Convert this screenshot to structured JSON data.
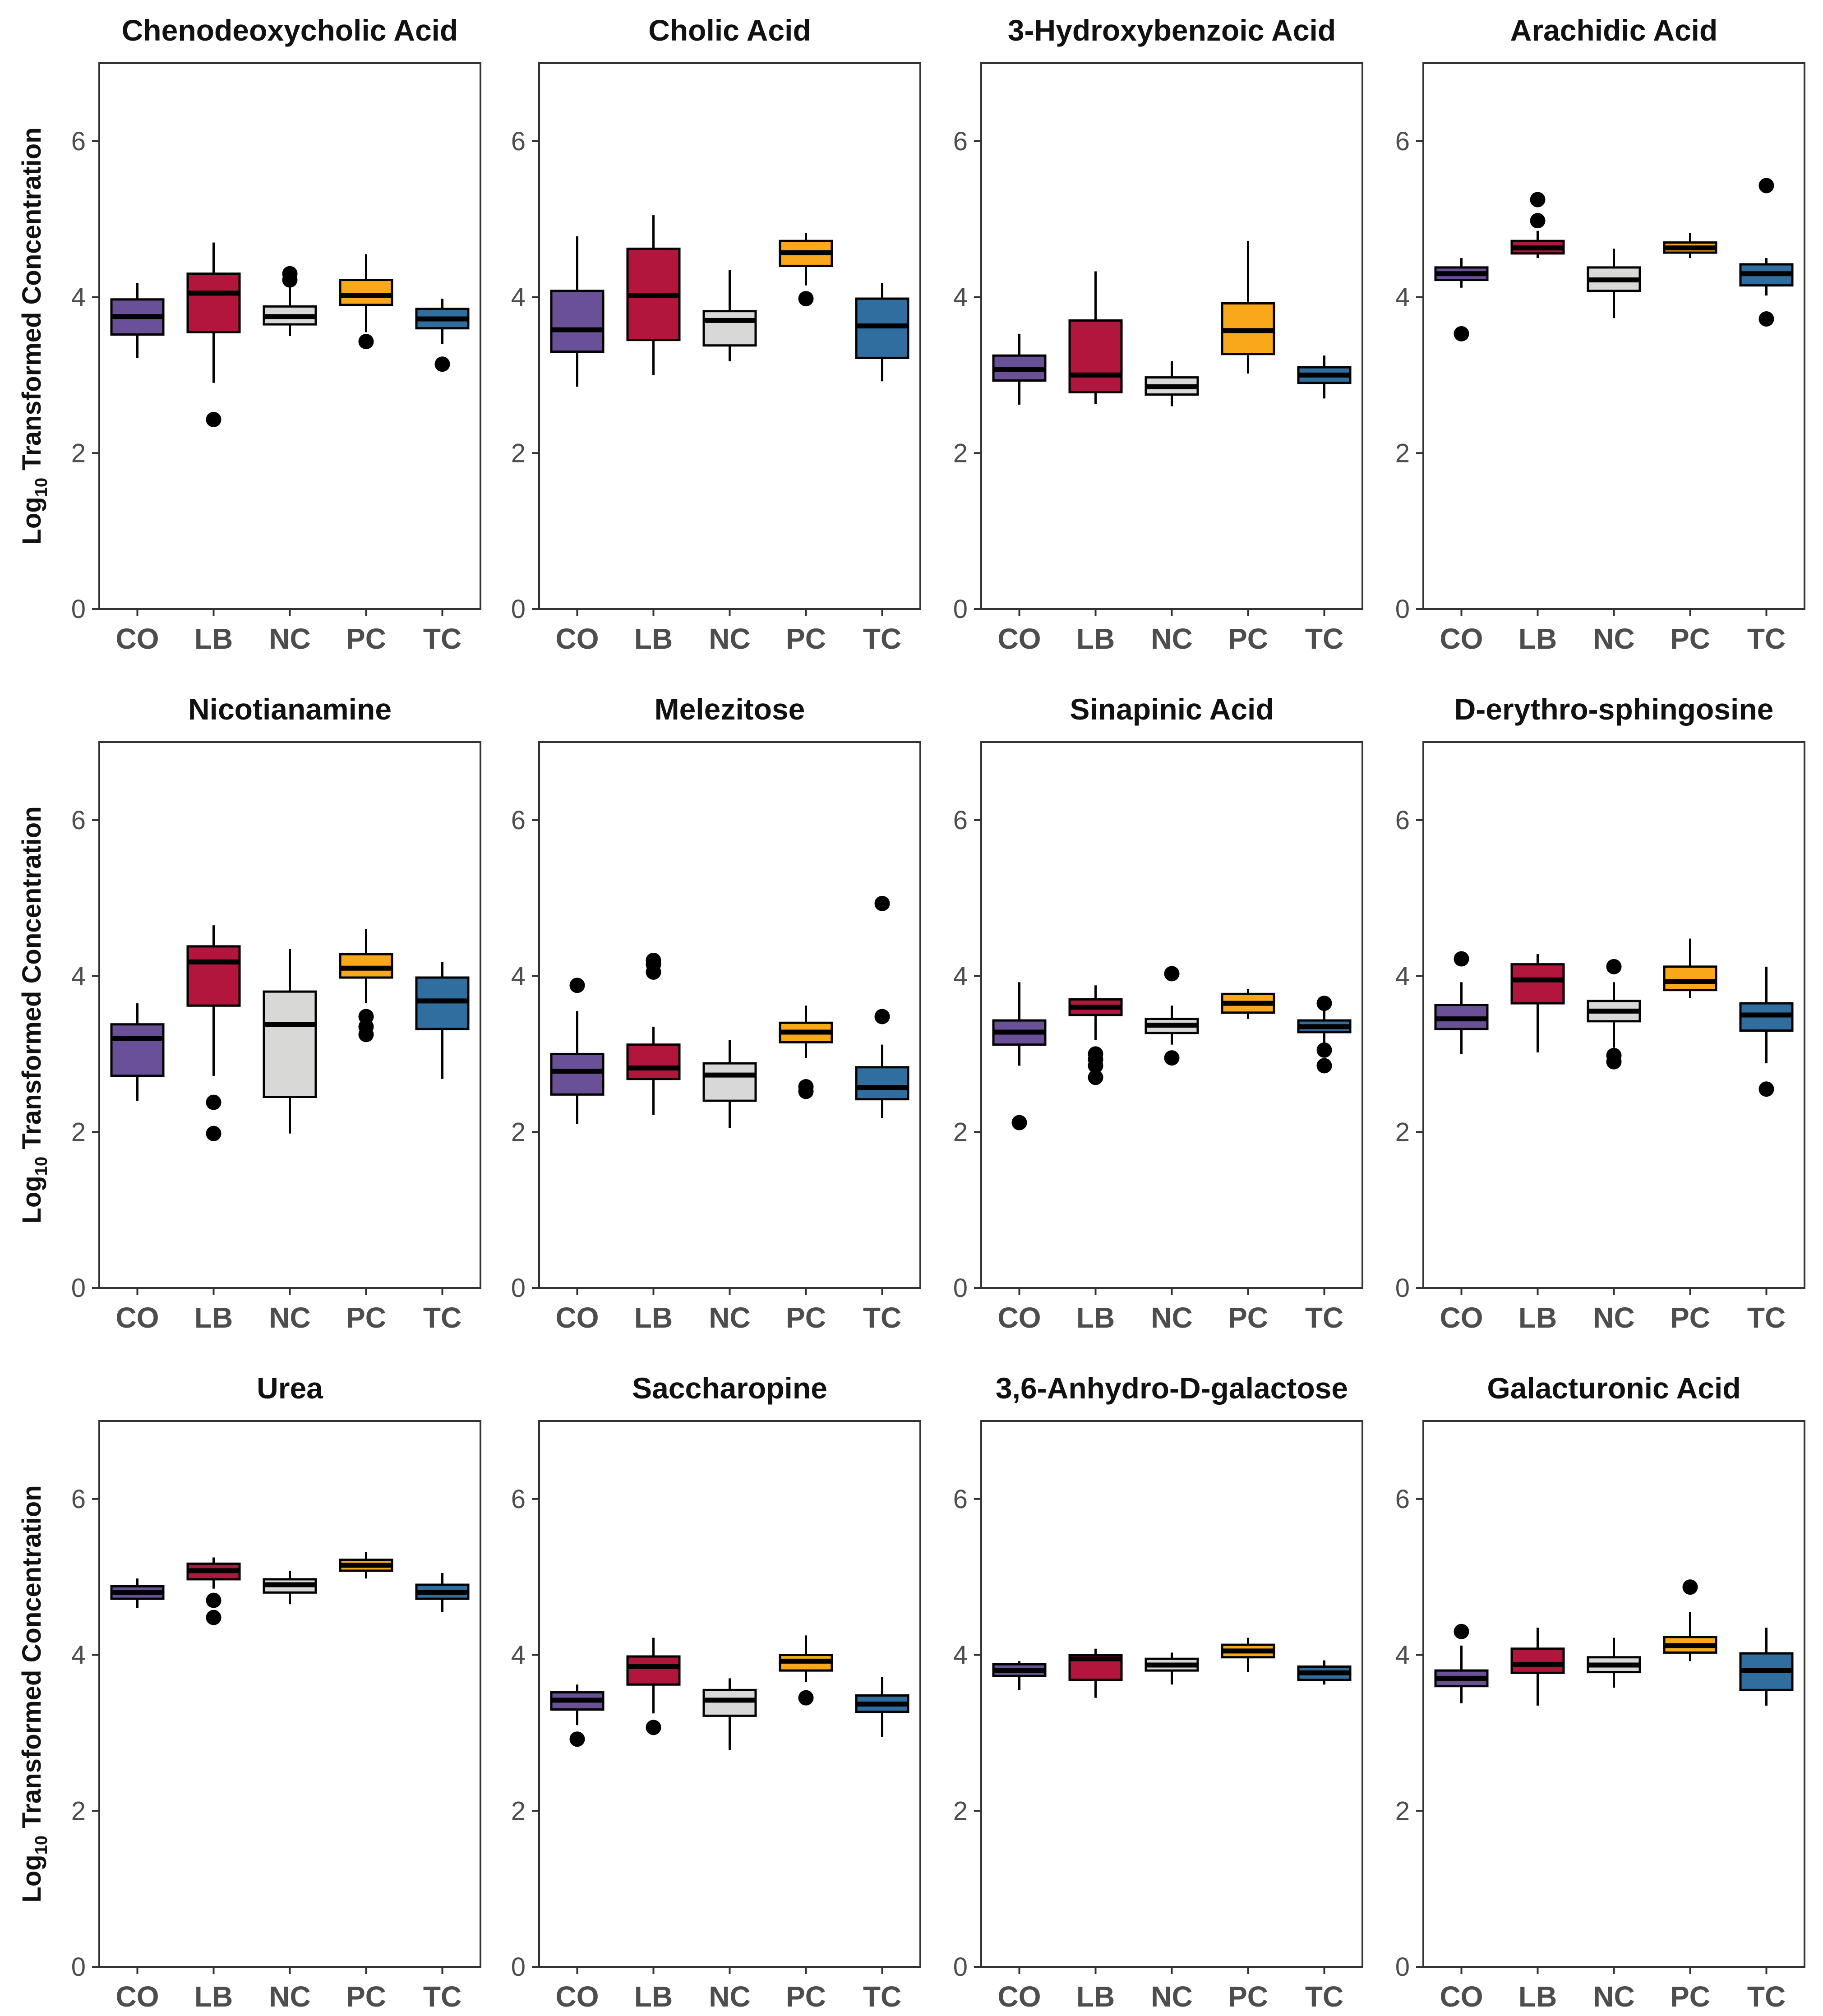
{
  "figure": {
    "y_axis_title_prefix": "Log",
    "y_axis_title_subscript": "10",
    "y_axis_title_suffix": " Transformed Concentration"
  },
  "group_colors": {
    "CO": "#6a5197",
    "LB": "#b3163d",
    "NC": "#d8d9d6",
    "PC": "#f8a81a",
    "TC": "#2f6e9e"
  },
  "chart_data": [
    {
      "type": "box",
      "title": "Chenodeoxycholic Acid",
      "categories": [
        "CO",
        "LB",
        "NC",
        "PC",
        "TC"
      ],
      "ylim": [
        0,
        7
      ],
      "yticks": [
        0,
        2,
        4,
        6
      ],
      "xlabel": "",
      "ylabel": "Log10 Transformed Concentration",
      "boxes": [
        {
          "group": "CO",
          "min": 3.22,
          "q1": 3.52,
          "median": 3.75,
          "q3": 3.97,
          "max": 4.18,
          "outliers": []
        },
        {
          "group": "LB",
          "min": 2.9,
          "q1": 3.55,
          "median": 4.05,
          "q3": 4.3,
          "max": 4.7,
          "outliers": [
            2.43
          ]
        },
        {
          "group": "NC",
          "min": 3.5,
          "q1": 3.65,
          "median": 3.75,
          "q3": 3.88,
          "max": 4.15,
          "outliers": [
            4.22,
            4.3
          ]
        },
        {
          "group": "PC",
          "min": 3.55,
          "q1": 3.9,
          "median": 4.02,
          "q3": 4.22,
          "max": 4.55,
          "outliers": [
            3.43
          ]
        },
        {
          "group": "TC",
          "min": 3.4,
          "q1": 3.6,
          "median": 3.72,
          "q3": 3.85,
          "max": 3.98,
          "outliers": [
            3.14
          ]
        }
      ]
    },
    {
      "type": "box",
      "title": "Cholic Acid",
      "categories": [
        "CO",
        "LB",
        "NC",
        "PC",
        "TC"
      ],
      "ylim": [
        0,
        7
      ],
      "yticks": [
        0,
        2,
        4,
        6
      ],
      "xlabel": "",
      "ylabel": "",
      "boxes": [
        {
          "group": "CO",
          "min": 2.85,
          "q1": 3.3,
          "median": 3.58,
          "q3": 4.08,
          "max": 4.78,
          "outliers": []
        },
        {
          "group": "LB",
          "min": 3.0,
          "q1": 3.45,
          "median": 4.02,
          "q3": 4.62,
          "max": 5.05,
          "outliers": []
        },
        {
          "group": "NC",
          "min": 3.18,
          "q1": 3.38,
          "median": 3.7,
          "q3": 3.82,
          "max": 4.35,
          "outliers": []
        },
        {
          "group": "PC",
          "min": 4.15,
          "q1": 4.4,
          "median": 4.57,
          "q3": 4.72,
          "max": 4.82,
          "outliers": [
            3.98
          ]
        },
        {
          "group": "TC",
          "min": 2.92,
          "q1": 3.22,
          "median": 3.63,
          "q3": 3.98,
          "max": 4.18,
          "outliers": []
        }
      ]
    },
    {
      "type": "box",
      "title": "3-Hydroxybenzoic Acid",
      "categories": [
        "CO",
        "LB",
        "NC",
        "PC",
        "TC"
      ],
      "ylim": [
        0,
        7
      ],
      "yticks": [
        0,
        2,
        4,
        6
      ],
      "xlabel": "",
      "ylabel": "",
      "boxes": [
        {
          "group": "CO",
          "min": 2.62,
          "q1": 2.93,
          "median": 3.07,
          "q3": 3.25,
          "max": 3.53,
          "outliers": []
        },
        {
          "group": "LB",
          "min": 2.63,
          "q1": 2.78,
          "median": 3.0,
          "q3": 3.7,
          "max": 4.33,
          "outliers": []
        },
        {
          "group": "NC",
          "min": 2.6,
          "q1": 2.75,
          "median": 2.85,
          "q3": 2.97,
          "max": 3.18,
          "outliers": []
        },
        {
          "group": "PC",
          "min": 3.02,
          "q1": 3.27,
          "median": 3.57,
          "q3": 3.92,
          "max": 4.72,
          "outliers": []
        },
        {
          "group": "TC",
          "min": 2.7,
          "q1": 2.9,
          "median": 3.0,
          "q3": 3.1,
          "max": 3.25,
          "outliers": []
        }
      ]
    },
    {
      "type": "box",
      "title": "Arachidic Acid",
      "categories": [
        "CO",
        "LB",
        "NC",
        "PC",
        "TC"
      ],
      "ylim": [
        0,
        7
      ],
      "yticks": [
        0,
        2,
        4,
        6
      ],
      "xlabel": "",
      "ylabel": "",
      "boxes": [
        {
          "group": "CO",
          "min": 4.12,
          "q1": 4.22,
          "median": 4.3,
          "q3": 4.38,
          "max": 4.5,
          "outliers": [
            3.53
          ]
        },
        {
          "group": "LB",
          "min": 4.5,
          "q1": 4.56,
          "median": 4.63,
          "q3": 4.72,
          "max": 4.85,
          "outliers": [
            4.98,
            5.25
          ]
        },
        {
          "group": "NC",
          "min": 3.73,
          "q1": 4.08,
          "median": 4.22,
          "q3": 4.38,
          "max": 4.62,
          "outliers": []
        },
        {
          "group": "PC",
          "min": 4.5,
          "q1": 4.57,
          "median": 4.63,
          "q3": 4.7,
          "max": 4.82,
          "outliers": []
        },
        {
          "group": "TC",
          "min": 4.02,
          "q1": 4.15,
          "median": 4.3,
          "q3": 4.42,
          "max": 4.5,
          "outliers": [
            3.72,
            5.43
          ]
        }
      ]
    },
    {
      "type": "box",
      "title": "Nicotianamine",
      "categories": [
        "CO",
        "LB",
        "NC",
        "PC",
        "TC"
      ],
      "ylim": [
        0,
        7
      ],
      "yticks": [
        0,
        2,
        4,
        6
      ],
      "xlabel": "",
      "ylabel": "Log10 Transformed Concentration",
      "boxes": [
        {
          "group": "CO",
          "min": 2.4,
          "q1": 2.72,
          "median": 3.2,
          "q3": 3.38,
          "max": 3.65,
          "outliers": []
        },
        {
          "group": "LB",
          "min": 2.72,
          "q1": 3.62,
          "median": 4.18,
          "q3": 4.38,
          "max": 4.65,
          "outliers": [
            2.38,
            1.98
          ]
        },
        {
          "group": "NC",
          "min": 1.98,
          "q1": 2.45,
          "median": 3.38,
          "q3": 3.8,
          "max": 4.35,
          "outliers": []
        },
        {
          "group": "PC",
          "min": 3.65,
          "q1": 3.98,
          "median": 4.1,
          "q3": 4.28,
          "max": 4.6,
          "outliers": [
            3.48,
            3.35,
            3.25
          ]
        },
        {
          "group": "TC",
          "min": 2.68,
          "q1": 3.32,
          "median": 3.68,
          "q3": 3.98,
          "max": 4.18,
          "outliers": []
        }
      ]
    },
    {
      "type": "box",
      "title": "Melezitose",
      "categories": [
        "CO",
        "LB",
        "NC",
        "PC",
        "TC"
      ],
      "ylim": [
        0,
        7
      ],
      "yticks": [
        0,
        2,
        4,
        6
      ],
      "xlabel": "",
      "ylabel": "",
      "boxes": [
        {
          "group": "CO",
          "min": 2.1,
          "q1": 2.48,
          "median": 2.78,
          "q3": 3.0,
          "max": 3.55,
          "outliers": [
            3.88
          ]
        },
        {
          "group": "LB",
          "min": 2.22,
          "q1": 2.68,
          "median": 2.82,
          "q3": 3.12,
          "max": 3.35,
          "outliers": [
            4.05,
            4.15,
            4.2
          ]
        },
        {
          "group": "NC",
          "min": 2.05,
          "q1": 2.4,
          "median": 2.73,
          "q3": 2.88,
          "max": 3.18,
          "outliers": []
        },
        {
          "group": "PC",
          "min": 2.95,
          "q1": 3.15,
          "median": 3.28,
          "q3": 3.4,
          "max": 3.62,
          "outliers": [
            2.58,
            2.52
          ]
        },
        {
          "group": "TC",
          "min": 2.18,
          "q1": 2.42,
          "median": 2.57,
          "q3": 2.83,
          "max": 3.12,
          "outliers": [
            3.48,
            4.93
          ]
        }
      ]
    },
    {
      "type": "box",
      "title": "Sinapinic Acid",
      "categories": [
        "CO",
        "LB",
        "NC",
        "PC",
        "TC"
      ],
      "ylim": [
        0,
        7
      ],
      "yticks": [
        0,
        2,
        4,
        6
      ],
      "xlabel": "",
      "ylabel": "",
      "boxes": [
        {
          "group": "CO",
          "min": 2.85,
          "q1": 3.12,
          "median": 3.28,
          "q3": 3.43,
          "max": 3.92,
          "outliers": [
            2.12
          ]
        },
        {
          "group": "LB",
          "min": 3.18,
          "q1": 3.5,
          "median": 3.6,
          "q3": 3.7,
          "max": 3.88,
          "outliers": [
            3.0,
            2.93,
            2.85,
            2.7
          ]
        },
        {
          "group": "NC",
          "min": 3.12,
          "q1": 3.27,
          "median": 3.37,
          "q3": 3.45,
          "max": 3.62,
          "outliers": [
            2.95,
            4.03
          ]
        },
        {
          "group": "PC",
          "min": 3.45,
          "q1": 3.53,
          "median": 3.65,
          "q3": 3.77,
          "max": 3.83,
          "outliers": []
        },
        {
          "group": "TC",
          "min": 3.1,
          "q1": 3.28,
          "median": 3.35,
          "q3": 3.43,
          "max": 3.58,
          "outliers": [
            3.65,
            3.05,
            2.85
          ]
        }
      ]
    },
    {
      "type": "box",
      "title": "D-erythro-sphingosine",
      "categories": [
        "CO",
        "LB",
        "NC",
        "PC",
        "TC"
      ],
      "ylim": [
        0,
        7
      ],
      "yticks": [
        0,
        2,
        4,
        6
      ],
      "xlabel": "",
      "ylabel": "",
      "boxes": [
        {
          "group": "CO",
          "min": 3.0,
          "q1": 3.32,
          "median": 3.45,
          "q3": 3.63,
          "max": 3.92,
          "outliers": [
            4.22
          ]
        },
        {
          "group": "LB",
          "min": 3.02,
          "q1": 3.65,
          "median": 3.95,
          "q3": 4.15,
          "max": 4.28,
          "outliers": []
        },
        {
          "group": "NC",
          "min": 3.08,
          "q1": 3.42,
          "median": 3.55,
          "q3": 3.68,
          "max": 3.92,
          "outliers": [
            4.12,
            2.98,
            2.9
          ]
        },
        {
          "group": "PC",
          "min": 3.72,
          "q1": 3.82,
          "median": 3.93,
          "q3": 4.12,
          "max": 4.48,
          "outliers": []
        },
        {
          "group": "TC",
          "min": 2.88,
          "q1": 3.3,
          "median": 3.5,
          "q3": 3.65,
          "max": 4.12,
          "outliers": [
            2.55
          ]
        }
      ]
    },
    {
      "type": "box",
      "title": "Urea",
      "categories": [
        "CO",
        "LB",
        "NC",
        "PC",
        "TC"
      ],
      "ylim": [
        0,
        7
      ],
      "yticks": [
        0,
        2,
        4,
        6
      ],
      "xlabel": "",
      "ylabel": "Log10 Transformed Concentration",
      "boxes": [
        {
          "group": "CO",
          "min": 4.6,
          "q1": 4.72,
          "median": 4.8,
          "q3": 4.88,
          "max": 4.98,
          "outliers": []
        },
        {
          "group": "LB",
          "min": 4.85,
          "q1": 4.97,
          "median": 5.08,
          "q3": 5.17,
          "max": 5.25,
          "outliers": [
            4.7,
            4.48
          ]
        },
        {
          "group": "NC",
          "min": 4.65,
          "q1": 4.8,
          "median": 4.9,
          "q3": 4.97,
          "max": 5.08,
          "outliers": []
        },
        {
          "group": "PC",
          "min": 4.98,
          "q1": 5.08,
          "median": 5.15,
          "q3": 5.22,
          "max": 5.32,
          "outliers": []
        },
        {
          "group": "TC",
          "min": 4.55,
          "q1": 4.72,
          "median": 4.8,
          "q3": 4.9,
          "max": 5.05,
          "outliers": []
        }
      ]
    },
    {
      "type": "box",
      "title": "Saccharopine",
      "categories": [
        "CO",
        "LB",
        "NC",
        "PC",
        "TC"
      ],
      "ylim": [
        0,
        7
      ],
      "yticks": [
        0,
        2,
        4,
        6
      ],
      "xlabel": "",
      "ylabel": "",
      "boxes": [
        {
          "group": "CO",
          "min": 3.1,
          "q1": 3.3,
          "median": 3.42,
          "q3": 3.52,
          "max": 3.62,
          "outliers": [
            2.92
          ]
        },
        {
          "group": "LB",
          "min": 3.25,
          "q1": 3.62,
          "median": 3.85,
          "q3": 3.98,
          "max": 4.22,
          "outliers": [
            3.07
          ]
        },
        {
          "group": "NC",
          "min": 2.78,
          "q1": 3.22,
          "median": 3.42,
          "q3": 3.55,
          "max": 3.7,
          "outliers": []
        },
        {
          "group": "PC",
          "min": 3.65,
          "q1": 3.8,
          "median": 3.92,
          "q3": 4.0,
          "max": 4.25,
          "outliers": [
            3.45
          ]
        },
        {
          "group": "TC",
          "min": 2.95,
          "q1": 3.27,
          "median": 3.37,
          "q3": 3.48,
          "max": 3.72,
          "outliers": []
        }
      ]
    },
    {
      "type": "box",
      "title": "3,6-Anhydro-D-galactose",
      "categories": [
        "CO",
        "LB",
        "NC",
        "PC",
        "TC"
      ],
      "ylim": [
        0,
        7
      ],
      "yticks": [
        0,
        2,
        4,
        6
      ],
      "xlabel": "",
      "ylabel": "",
      "boxes": [
        {
          "group": "CO",
          "min": 3.55,
          "q1": 3.73,
          "median": 3.8,
          "q3": 3.88,
          "max": 3.92,
          "outliers": []
        },
        {
          "group": "LB",
          "min": 3.45,
          "q1": 3.68,
          "median": 3.95,
          "q3": 4.0,
          "max": 4.08,
          "outliers": []
        },
        {
          "group": "NC",
          "min": 3.62,
          "q1": 3.8,
          "median": 3.87,
          "q3": 3.95,
          "max": 4.03,
          "outliers": []
        },
        {
          "group": "PC",
          "min": 3.78,
          "q1": 3.97,
          "median": 4.05,
          "q3": 4.13,
          "max": 4.22,
          "outliers": []
        },
        {
          "group": "TC",
          "min": 3.62,
          "q1": 3.68,
          "median": 3.77,
          "q3": 3.85,
          "max": 3.93,
          "outliers": []
        }
      ]
    },
    {
      "type": "box",
      "title": "Galacturonic Acid",
      "categories": [
        "CO",
        "LB",
        "NC",
        "PC",
        "TC"
      ],
      "ylim": [
        0,
        7
      ],
      "yticks": [
        0,
        2,
        4,
        6
      ],
      "xlabel": "",
      "ylabel": "",
      "boxes": [
        {
          "group": "CO",
          "min": 3.38,
          "q1": 3.6,
          "median": 3.7,
          "q3": 3.8,
          "max": 4.12,
          "outliers": [
            4.3
          ]
        },
        {
          "group": "LB",
          "min": 3.35,
          "q1": 3.77,
          "median": 3.88,
          "q3": 4.08,
          "max": 4.35,
          "outliers": []
        },
        {
          "group": "NC",
          "min": 3.58,
          "q1": 3.78,
          "median": 3.87,
          "q3": 3.97,
          "max": 4.22,
          "outliers": []
        },
        {
          "group": "PC",
          "min": 3.92,
          "q1": 4.03,
          "median": 4.12,
          "q3": 4.23,
          "max": 4.55,
          "outliers": [
            4.87
          ]
        },
        {
          "group": "TC",
          "min": 3.35,
          "q1": 3.55,
          "median": 3.8,
          "q3": 4.02,
          "max": 4.35,
          "outliers": []
        }
      ]
    }
  ]
}
